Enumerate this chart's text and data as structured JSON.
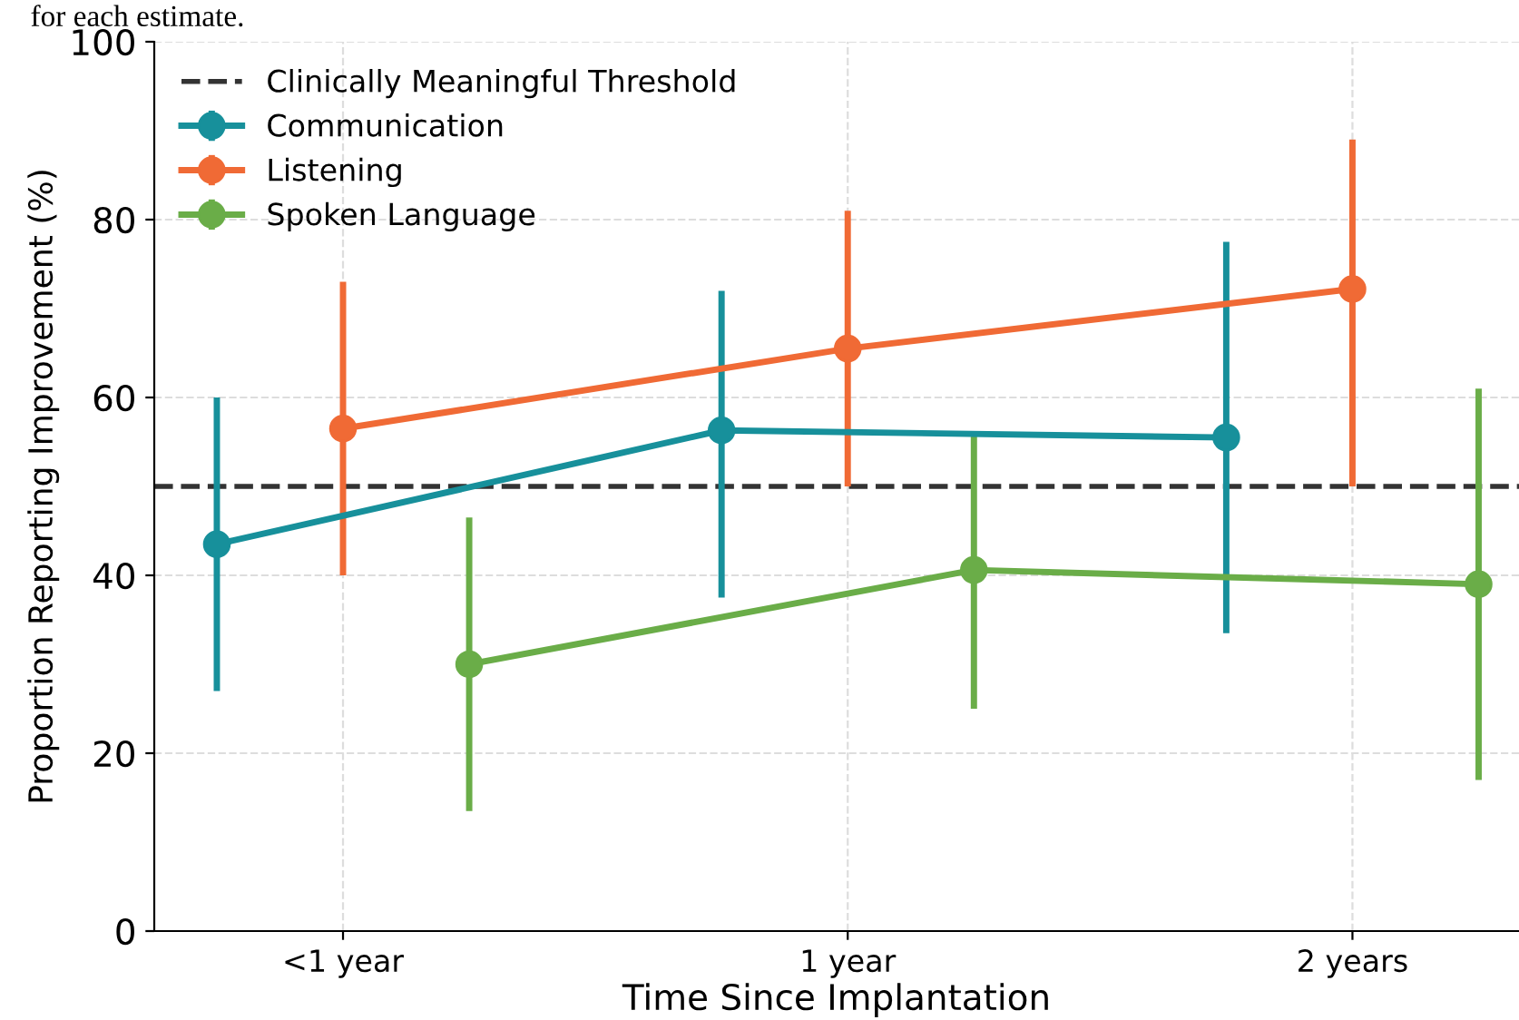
{
  "chart_data": {
    "type": "line",
    "xlabel": "Time Since Implantation",
    "ylabel": "Proportion Reporting Improvement (%)",
    "annotations": [
      "for each estimate."
    ],
    "categories": [
      "<1 year",
      "1 year",
      "2 years"
    ],
    "series": [
      {
        "name": "Communication",
        "color": "#17909b",
        "values": [
          43.5,
          56.3,
          55.5
        ],
        "errors": [
          [
            27,
            60
          ],
          [
            37.5,
            72
          ],
          [
            33.5,
            77.5
          ]
        ]
      },
      {
        "name": "Listening",
        "color": "#f06a35",
        "values": [
          56.5,
          65.5,
          72.2
        ],
        "errors": [
          [
            40,
            73
          ],
          [
            50,
            81
          ],
          [
            50,
            89
          ]
        ]
      },
      {
        "name": "Spoken Language",
        "color": "#6aad48",
        "values": [
          30,
          40.6,
          39
        ],
        "errors": [
          [
            13.5,
            46.5
          ],
          [
            25,
            56
          ],
          [
            17,
            61
          ]
        ]
      }
    ],
    "ref_lines": [
      {
        "axis": "y",
        "value": 50,
        "label": "Clinically Meaningful Threshold",
        "color": "#333333",
        "line_style": "dashed"
      }
    ],
    "ylim": [
      0,
      100
    ],
    "yticks": [
      0,
      20,
      40,
      60,
      80,
      100
    ],
    "marker": "circle",
    "line_style": "solid",
    "grid": true,
    "legend": "top left"
  }
}
